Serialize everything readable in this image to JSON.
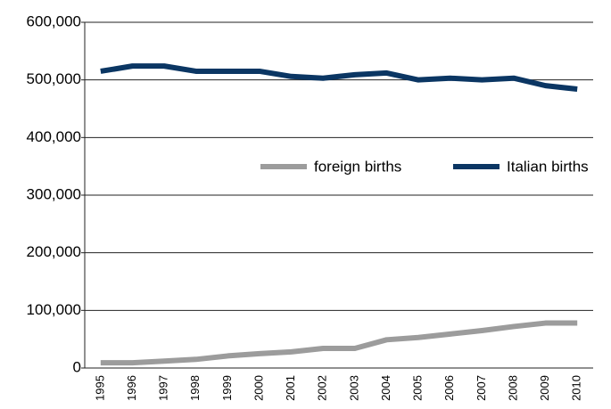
{
  "chart_data": {
    "type": "line",
    "categories": [
      "1995",
      "1996",
      "1997",
      "1998",
      "1999",
      "2000",
      "2001",
      "2002",
      "2003",
      "2004",
      "2005",
      "2006",
      "2007",
      "2008",
      "2009",
      "2010"
    ],
    "series": [
      {
        "name": "foreign births",
        "color": "#9c9c9c",
        "values": [
          9000,
          9000,
          12000,
          15000,
          21000,
          25000,
          28000,
          34000,
          34000,
          49000,
          53000,
          59000,
          65000,
          72000,
          78000,
          78000
        ]
      },
      {
        "name": "Italian births",
        "color": "#0b3663",
        "values": [
          515000,
          524000,
          524000,
          515000,
          515000,
          515000,
          506000,
          503000,
          509000,
          512000,
          500000,
          503000,
          500000,
          503000,
          490000,
          484000
        ]
      }
    ],
    "ylim": [
      0,
      600000
    ],
    "yticks": [
      0,
      {
        "value": 100000,
        "label": "100,000"
      },
      {
        "value": 200000,
        "label": "200,000"
      },
      {
        "value": 300000,
        "label": "300,000"
      },
      {
        "value": 400000,
        "label": "400,000"
      },
      {
        "value": 500000,
        "label": "500,000"
      },
      {
        "value": 600000,
        "label": "600,000"
      }
    ],
    "grid": true
  }
}
